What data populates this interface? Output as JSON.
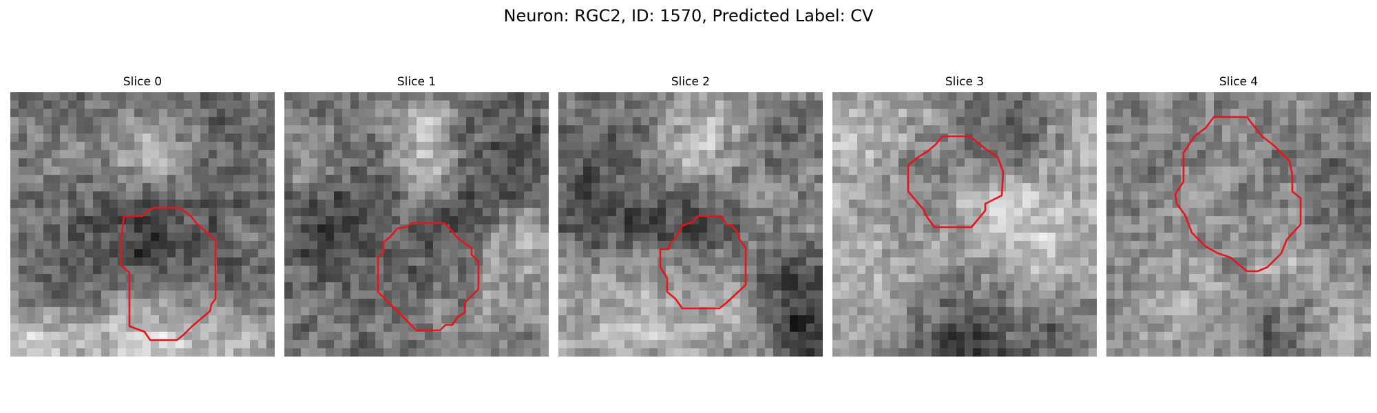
{
  "figure": {
    "title": "Neuron: RGC2, ID: 1570, Predicted Label: CV"
  },
  "panels": [
    {
      "title": "Slice 0"
    },
    {
      "title": "Slice 1"
    },
    {
      "title": "Slice 2"
    },
    {
      "title": "Slice 3"
    },
    {
      "title": "Slice 4"
    }
  ],
  "colors": {
    "contour": "#e8141b",
    "background": "#ffffff"
  },
  "image": {
    "grid": [
      32,
      32
    ],
    "colormap": "gray"
  }
}
